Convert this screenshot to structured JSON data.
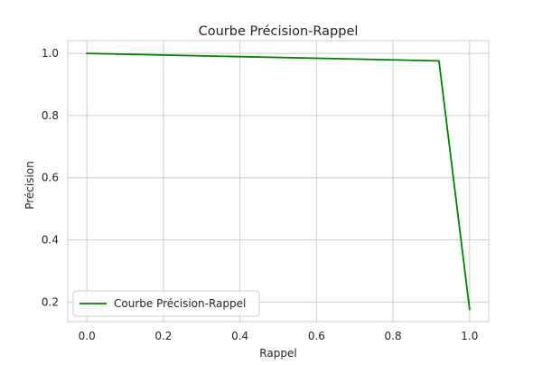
{
  "chart_data": {
    "type": "line",
    "title": "Courbe Précision-Rappel",
    "xlabel": "Rappel",
    "ylabel": "Précision",
    "xlim": [
      -0.05,
      1.05
    ],
    "ylim": [
      0.137,
      1.041
    ],
    "xticks": [
      0.0,
      0.2,
      0.4,
      0.6,
      0.8,
      1.0
    ],
    "xtick_labels": [
      "0.0",
      "0.2",
      "0.4",
      "0.6",
      "0.8",
      "1.0"
    ],
    "yticks": [
      0.2,
      0.4,
      0.6,
      0.8,
      1.0
    ],
    "ytick_labels": [
      "0.2",
      "0.4",
      "0.6",
      "0.8",
      "1.0"
    ],
    "grid": true,
    "legend_position": "lower-left",
    "series": [
      {
        "name": "Courbe Précision-Rappel",
        "color": "#008000",
        "x": [
          0.0,
          0.92,
          1.0
        ],
        "y": [
          1.0,
          0.976,
          0.177
        ]
      }
    ]
  }
}
